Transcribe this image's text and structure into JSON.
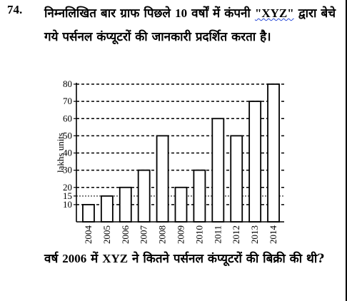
{
  "question": {
    "number": "74.",
    "intro_part1": "निम्नलिखित बार ग्राफ पिछले ",
    "years_count": "10",
    "intro_part2": " वर्षों में कंपनी ",
    "company": "\"XYZ\"",
    "intro_part3": " द्वारा बेचे गये पर्सनल कंप्यूटरों की जानकारी प्रदर्शित करता है।",
    "follow_part1": "वर्ष ",
    "follow_year": "2006",
    "follow_part2": " में ",
    "follow_company": "XYZ",
    "follow_part3": " ने कितने पर्सनल कंप्यूटरों की बिक्री की थी?"
  },
  "chart_data": {
    "type": "bar",
    "title": "",
    "xlabel": "",
    "ylabel": "lakhs units",
    "categories": [
      "2004",
      "2005",
      "2006",
      "2007",
      "2008",
      "2009",
      "2010",
      "2011",
      "2012",
      "2013",
      "2014"
    ],
    "values": [
      10,
      15,
      20,
      30,
      50,
      20,
      30,
      60,
      50,
      70,
      80
    ],
    "ylim": [
      0,
      80
    ],
    "yticks": [
      10,
      15,
      20,
      30,
      40,
      50,
      60,
      70,
      80
    ],
    "grid": "dashed horizontal",
    "legend": "none"
  }
}
